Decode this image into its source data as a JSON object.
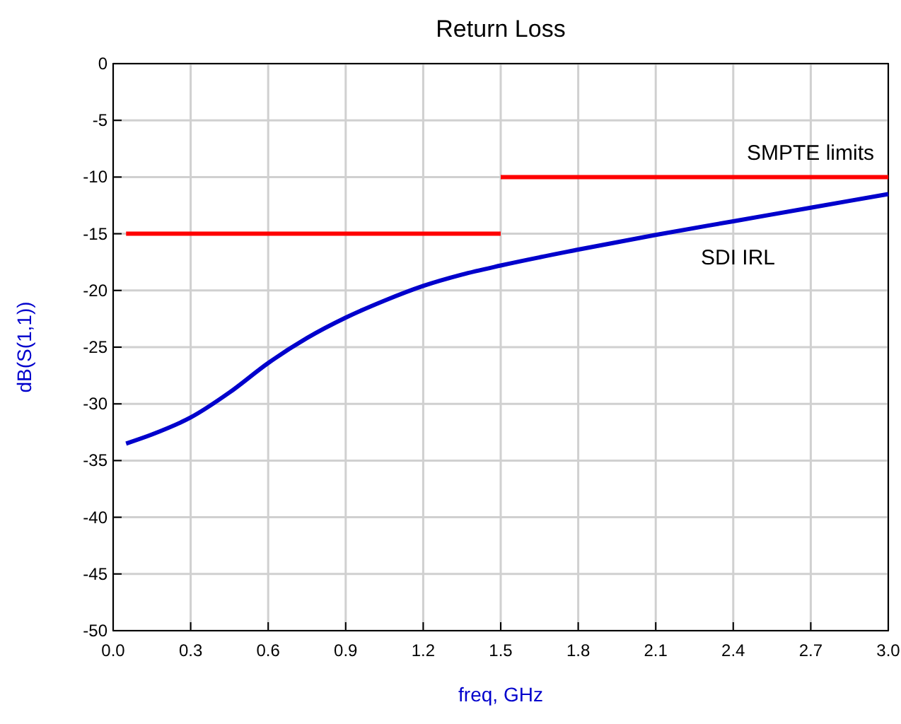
{
  "chart_data": {
    "type": "line",
    "title": "Return Loss",
    "xlabel": "freq, GHz",
    "ylabel": "dB(S(1,1))",
    "xlim": [
      0,
      3
    ],
    "xticks": [
      {
        "value": 0,
        "label": "0.0"
      },
      0.3,
      0.6,
      0.9,
      1.2,
      1.5,
      1.8,
      2.1,
      2.4,
      2.7,
      {
        "value": 3,
        "label": "3.0"
      }
    ],
    "ylim": [
      -50,
      0
    ],
    "yticks": [
      -50,
      -45,
      -40,
      -35,
      -30,
      -25,
      -20,
      -15,
      -10,
      -5,
      0
    ],
    "grid": true,
    "legend": false,
    "line_style": "solid",
    "marker": "none",
    "series": [
      {
        "name": "SMPTE limits",
        "color": "#ff0000",
        "x": [
          1.5,
          3.0
        ],
        "values": [
          -10,
          -10
        ]
      },
      {
        "color": "#ff0000",
        "x": [
          0.05,
          1.5
        ],
        "values": [
          -15,
          -15
        ]
      },
      {
        "name": "SDI IRL",
        "color": "#0000cc",
        "x": [
          0.05,
          0.15,
          0.3,
          0.45,
          0.6,
          0.75,
          0.9,
          1.05,
          1.2,
          1.35,
          1.5,
          1.8,
          2.1,
          2.4,
          2.7,
          3.0
        ],
        "values": [
          -33.5,
          -32.7,
          -31.2,
          -29.0,
          -26.4,
          -24.2,
          -22.4,
          -20.9,
          -19.6,
          -18.6,
          -17.8,
          -16.4,
          -15.1,
          -13.9,
          -12.7,
          -11.5
        ]
      }
    ]
  }
}
